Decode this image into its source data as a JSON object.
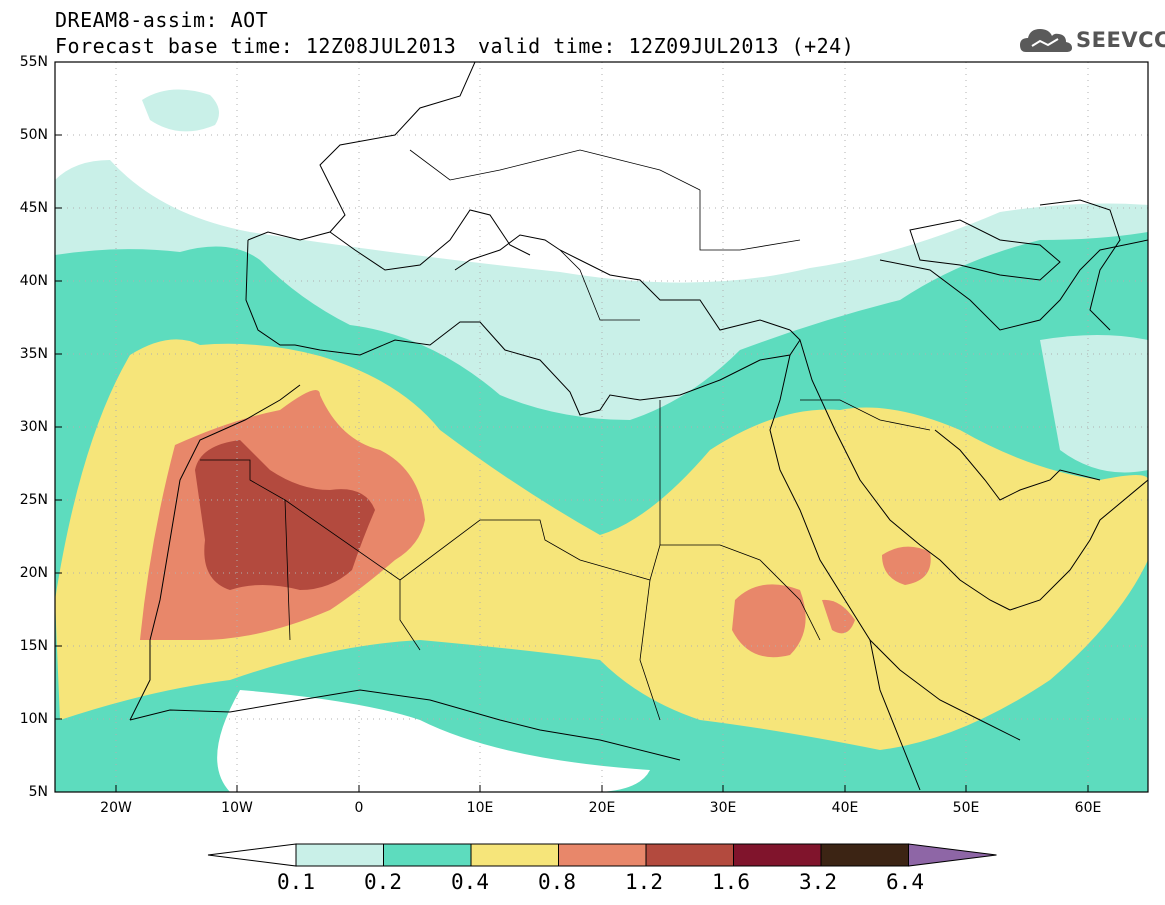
{
  "header": {
    "title": "DREAM8-assim: AOT",
    "base_time": "Forecast base time: 12Z08JUL2013",
    "valid_time": "valid time: 12Z09JUL2013 (+24)"
  },
  "logo": {
    "text": "SEEVCCC"
  },
  "map": {
    "variable": "AOT",
    "lat_labels": [
      "55N",
      "50N",
      "45N",
      "40N",
      "35N",
      "30N",
      "25N",
      "20N",
      "15N",
      "10N",
      "5N"
    ],
    "lon_labels": [
      "20W",
      "10W",
      "0",
      "10E",
      "20E",
      "30E",
      "40E",
      "50E",
      "60E"
    ],
    "lat_range": [
      5,
      55
    ],
    "lon_range": [
      -25,
      65
    ],
    "grid": "dotted"
  },
  "colorbar": {
    "labels": [
      "0.1",
      "0.2",
      "0.4",
      "0.8",
      "1.2",
      "1.6",
      "3.2",
      "6.4"
    ],
    "colors": [
      "#ffffff",
      "#c9f0e8",
      "#5ddcbe",
      "#f6e57a",
      "#e8876a",
      "#b34a3e",
      "#80142c",
      "#3c2414",
      "#8e66a6"
    ]
  }
}
